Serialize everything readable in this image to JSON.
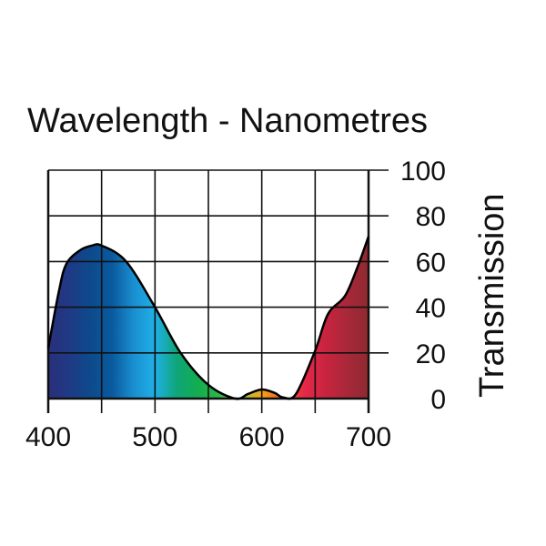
{
  "chart_data": {
    "type": "area",
    "title": "Wavelength - Nanometres",
    "xlabel": "Wavelength - Nanometres",
    "ylabel": "Transmission",
    "xlim": [
      400,
      700
    ],
    "ylim": [
      0,
      100
    ],
    "x_ticks": [
      400,
      500,
      600,
      700
    ],
    "y_ticks": [
      0,
      20,
      40,
      60,
      80,
      100
    ],
    "x_grid_step": 50,
    "y_grid_step": 20,
    "grid": true,
    "series": [
      {
        "name": "Transmission",
        "x": [
          400,
          410,
          417,
          430,
          441,
          450,
          473,
          500,
          524,
          550,
          575,
          587,
          600,
          612,
          620,
          632,
          650,
          662,
          678,
          690,
          700
        ],
        "y": [
          22,
          47,
          59,
          65,
          67,
          67,
          60,
          40,
          20,
          6,
          0,
          2,
          4,
          2.5,
          0.5,
          2,
          21,
          37,
          45,
          58,
          71
        ]
      }
    ],
    "spectrum_colors": [
      "#2a2f7a",
      "#1f3a85",
      "#0d4a8c",
      "#0a5a9e",
      "#1a8fd0",
      "#20b0e8",
      "#0fa57a",
      "#12ad4e",
      "#2cb84a",
      "#9acb3c",
      "#f4a21c",
      "#ef5a1e",
      "#e62848",
      "#c8243e",
      "#a8283a",
      "#8e2a30"
    ]
  }
}
